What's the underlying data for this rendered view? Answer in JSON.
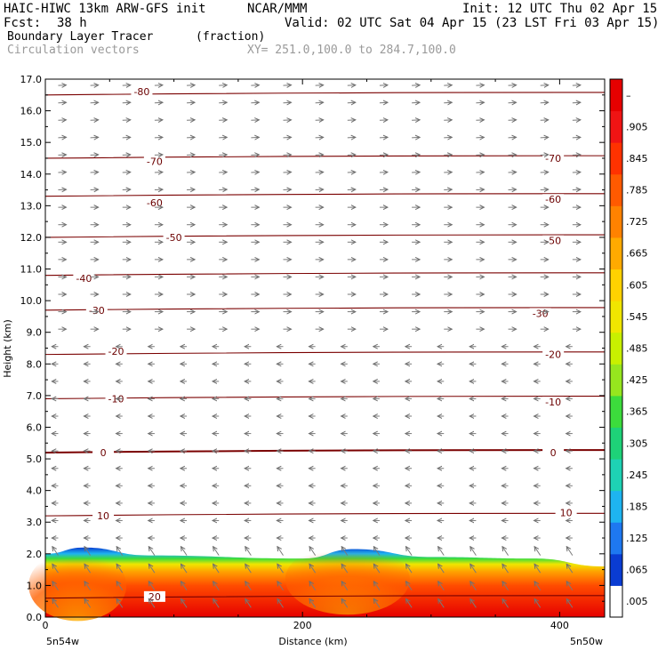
{
  "header": {
    "model": "HAIC-HIWC 13km ARW-GFS init",
    "org": "NCAR/MMM",
    "init": "Init: 12 UTC Thu 02 Apr 15",
    "fcst_label": "Fcst:",
    "fcst_value": "38 h",
    "valid": "Valid: 02 UTC Sat 04 Apr 15 (23 LST Fri 03 Apr 15)",
    "field": "Boundary Layer Tracer",
    "field_units": "(fraction)",
    "overlay": "Circulation vectors",
    "xy": "XY= 251.0,100.0 to 284.7,100.0"
  },
  "chart_data": {
    "type": "heatmap",
    "title": "Boundary Layer Tracer",
    "units": "fraction",
    "xlabel": "Distance (km)",
    "ylabel": "Height (km)",
    "xlim": [
      0,
      435
    ],
    "ylim": [
      0,
      17
    ],
    "x_ticks": [
      "0",
      "200",
      "400"
    ],
    "y_ticks": [
      "0.0",
      "1.0",
      "2.0",
      "3.0",
      "4.0",
      "5.0",
      "6.0",
      "7.0",
      "8.0",
      "9.0",
      "10.0",
      "11.0",
      "12.0",
      "13.0",
      "14.0",
      "15.0",
      "16.0",
      "17.0"
    ],
    "x_start_label": "5n54w",
    "x_end_label": "5n50w",
    "colorbar": {
      "labels": [
        ".005",
        ".065",
        ".125",
        ".185",
        ".245",
        ".305",
        ".365",
        ".425",
        ".485",
        ".545",
        ".605",
        ".665",
        ".725",
        ".785",
        ".845",
        ".905",
        "–"
      ],
      "colors": [
        "#ffffff",
        "#0a3cd2",
        "#1e78f0",
        "#1eb4f0",
        "#1ed2b4",
        "#1ed278",
        "#3cdc3c",
        "#96e61e",
        "#c8f000",
        "#f0e600",
        "#ffd200",
        "#ffaa00",
        "#ff8200",
        "#ff5a00",
        "#ff3200",
        "#f01414",
        "#e60000"
      ]
    },
    "boundary_layer_top_km": [
      {
        "x": 0,
        "y": 2.0
      },
      {
        "x": 30,
        "y": 2.2
      },
      {
        "x": 80,
        "y": 1.95
      },
      {
        "x": 200,
        "y": 1.85
      },
      {
        "x": 240,
        "y": 2.15
      },
      {
        "x": 300,
        "y": 1.9
      },
      {
        "x": 380,
        "y": 1.85
      },
      {
        "x": 435,
        "y": 1.6
      }
    ],
    "temperature_contours": [
      {
        "label": "-80",
        "y": 16.5
      },
      {
        "label": "-70",
        "y": 14.5
      },
      {
        "label": "-60",
        "y": 13.3
      },
      {
        "label": "-50",
        "y": 12.0
      },
      {
        "label": "-40",
        "y": 10.8
      },
      {
        "label": "-30",
        "y": 9.7
      },
      {
        "label": "-20",
        "y": 8.3
      },
      {
        "label": "-10",
        "y": 6.9
      },
      {
        "label": "0",
        "y": 5.2
      },
      {
        "label": "10",
        "y": 3.2
      },
      {
        "label": "20",
        "y": 0.6
      }
    ],
    "contour_label_positions": [
      {
        "label": "-80",
        "x": 75,
        "y": 16.6
      },
      {
        "label": "-70",
        "x": 85,
        "y": 14.4
      },
      {
        "label": "-70",
        "x": 395,
        "y": 14.5
      },
      {
        "label": "-60",
        "x": 85,
        "y": 13.1
      },
      {
        "label": "-60",
        "x": 395,
        "y": 13.2
      },
      {
        "label": "-50",
        "x": 100,
        "y": 12.0
      },
      {
        "label": "-50",
        "x": 395,
        "y": 11.9
      },
      {
        "label": "-40",
        "x": 30,
        "y": 10.7
      },
      {
        "label": "-30",
        "x": 40,
        "y": 9.7
      },
      {
        "label": "-30",
        "x": 385,
        "y": 9.6
      },
      {
        "label": "-20",
        "x": 55,
        "y": 8.4
      },
      {
        "label": "-20",
        "x": 395,
        "y": 8.3
      },
      {
        "label": "-10",
        "x": 55,
        "y": 6.9
      },
      {
        "label": "-10",
        "x": 395,
        "y": 6.8
      },
      {
        "label": "0",
        "x": 45,
        "y": 5.2
      },
      {
        "label": "0",
        "x": 395,
        "y": 5.2
      },
      {
        "label": "10",
        "x": 45,
        "y": 3.2
      },
      {
        "label": "10",
        "x": 405,
        "y": 3.3
      },
      {
        "label": "20",
        "x": 85,
        "y": 0.65
      }
    ],
    "grid": false
  }
}
